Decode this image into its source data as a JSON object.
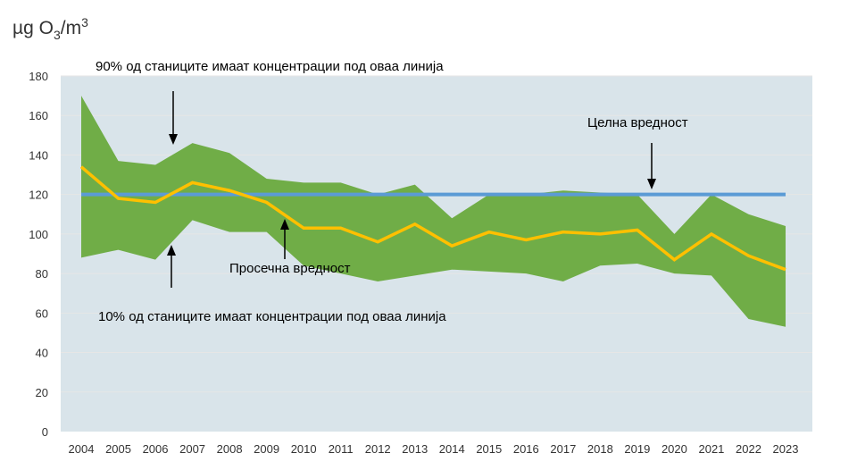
{
  "chart_data": {
    "type": "area",
    "ylabel_unit": "µg O",
    "ylabel_sub": "3",
    "ylabel_rest": "/m",
    "ylabel_sup": "3",
    "categories": [
      "2004",
      "2005",
      "2006",
      "2007",
      "2008",
      "2009",
      "2010",
      "2011",
      "2012",
      "2013",
      "2014",
      "2015",
      "2016",
      "2017",
      "2018",
      "2019",
      "2020",
      "2021",
      "2022",
      "2023"
    ],
    "ylim": [
      0,
      180
    ],
    "yticks": [
      0,
      20,
      40,
      60,
      80,
      100,
      120,
      140,
      160,
      180
    ],
    "grid": true,
    "series": [
      {
        "name": "90th percentile",
        "values": [
          170,
          137,
          135,
          146,
          141,
          128,
          126,
          126,
          120,
          125,
          108,
          120,
          120,
          122,
          121,
          120,
          100,
          120,
          110,
          104
        ]
      },
      {
        "name": "Просечна вредност",
        "values": [
          134,
          118,
          116,
          126,
          122,
          116,
          103,
          103,
          96,
          105,
          94,
          101,
          97,
          101,
          100,
          102,
          87,
          100,
          89,
          82
        ]
      },
      {
        "name": "10th percentile",
        "values": [
          88,
          92,
          87,
          107,
          101,
          101,
          84,
          80,
          76,
          79,
          82,
          81,
          80,
          76,
          84,
          85,
          80,
          79,
          57,
          53
        ]
      }
    ],
    "target_value": 120,
    "annotations": {
      "p90": "90% од станиците имаат концентрации под оваа линија",
      "p10": "10% од станиците имаат концентрации под оваа линија",
      "mean": "Просечна вредност",
      "target": "Целна вредност"
    },
    "colors": {
      "band": "#70ad47",
      "mean": "#ffc000",
      "target": "#5b9bd5",
      "plot_bg": "#d9e4ea"
    }
  }
}
